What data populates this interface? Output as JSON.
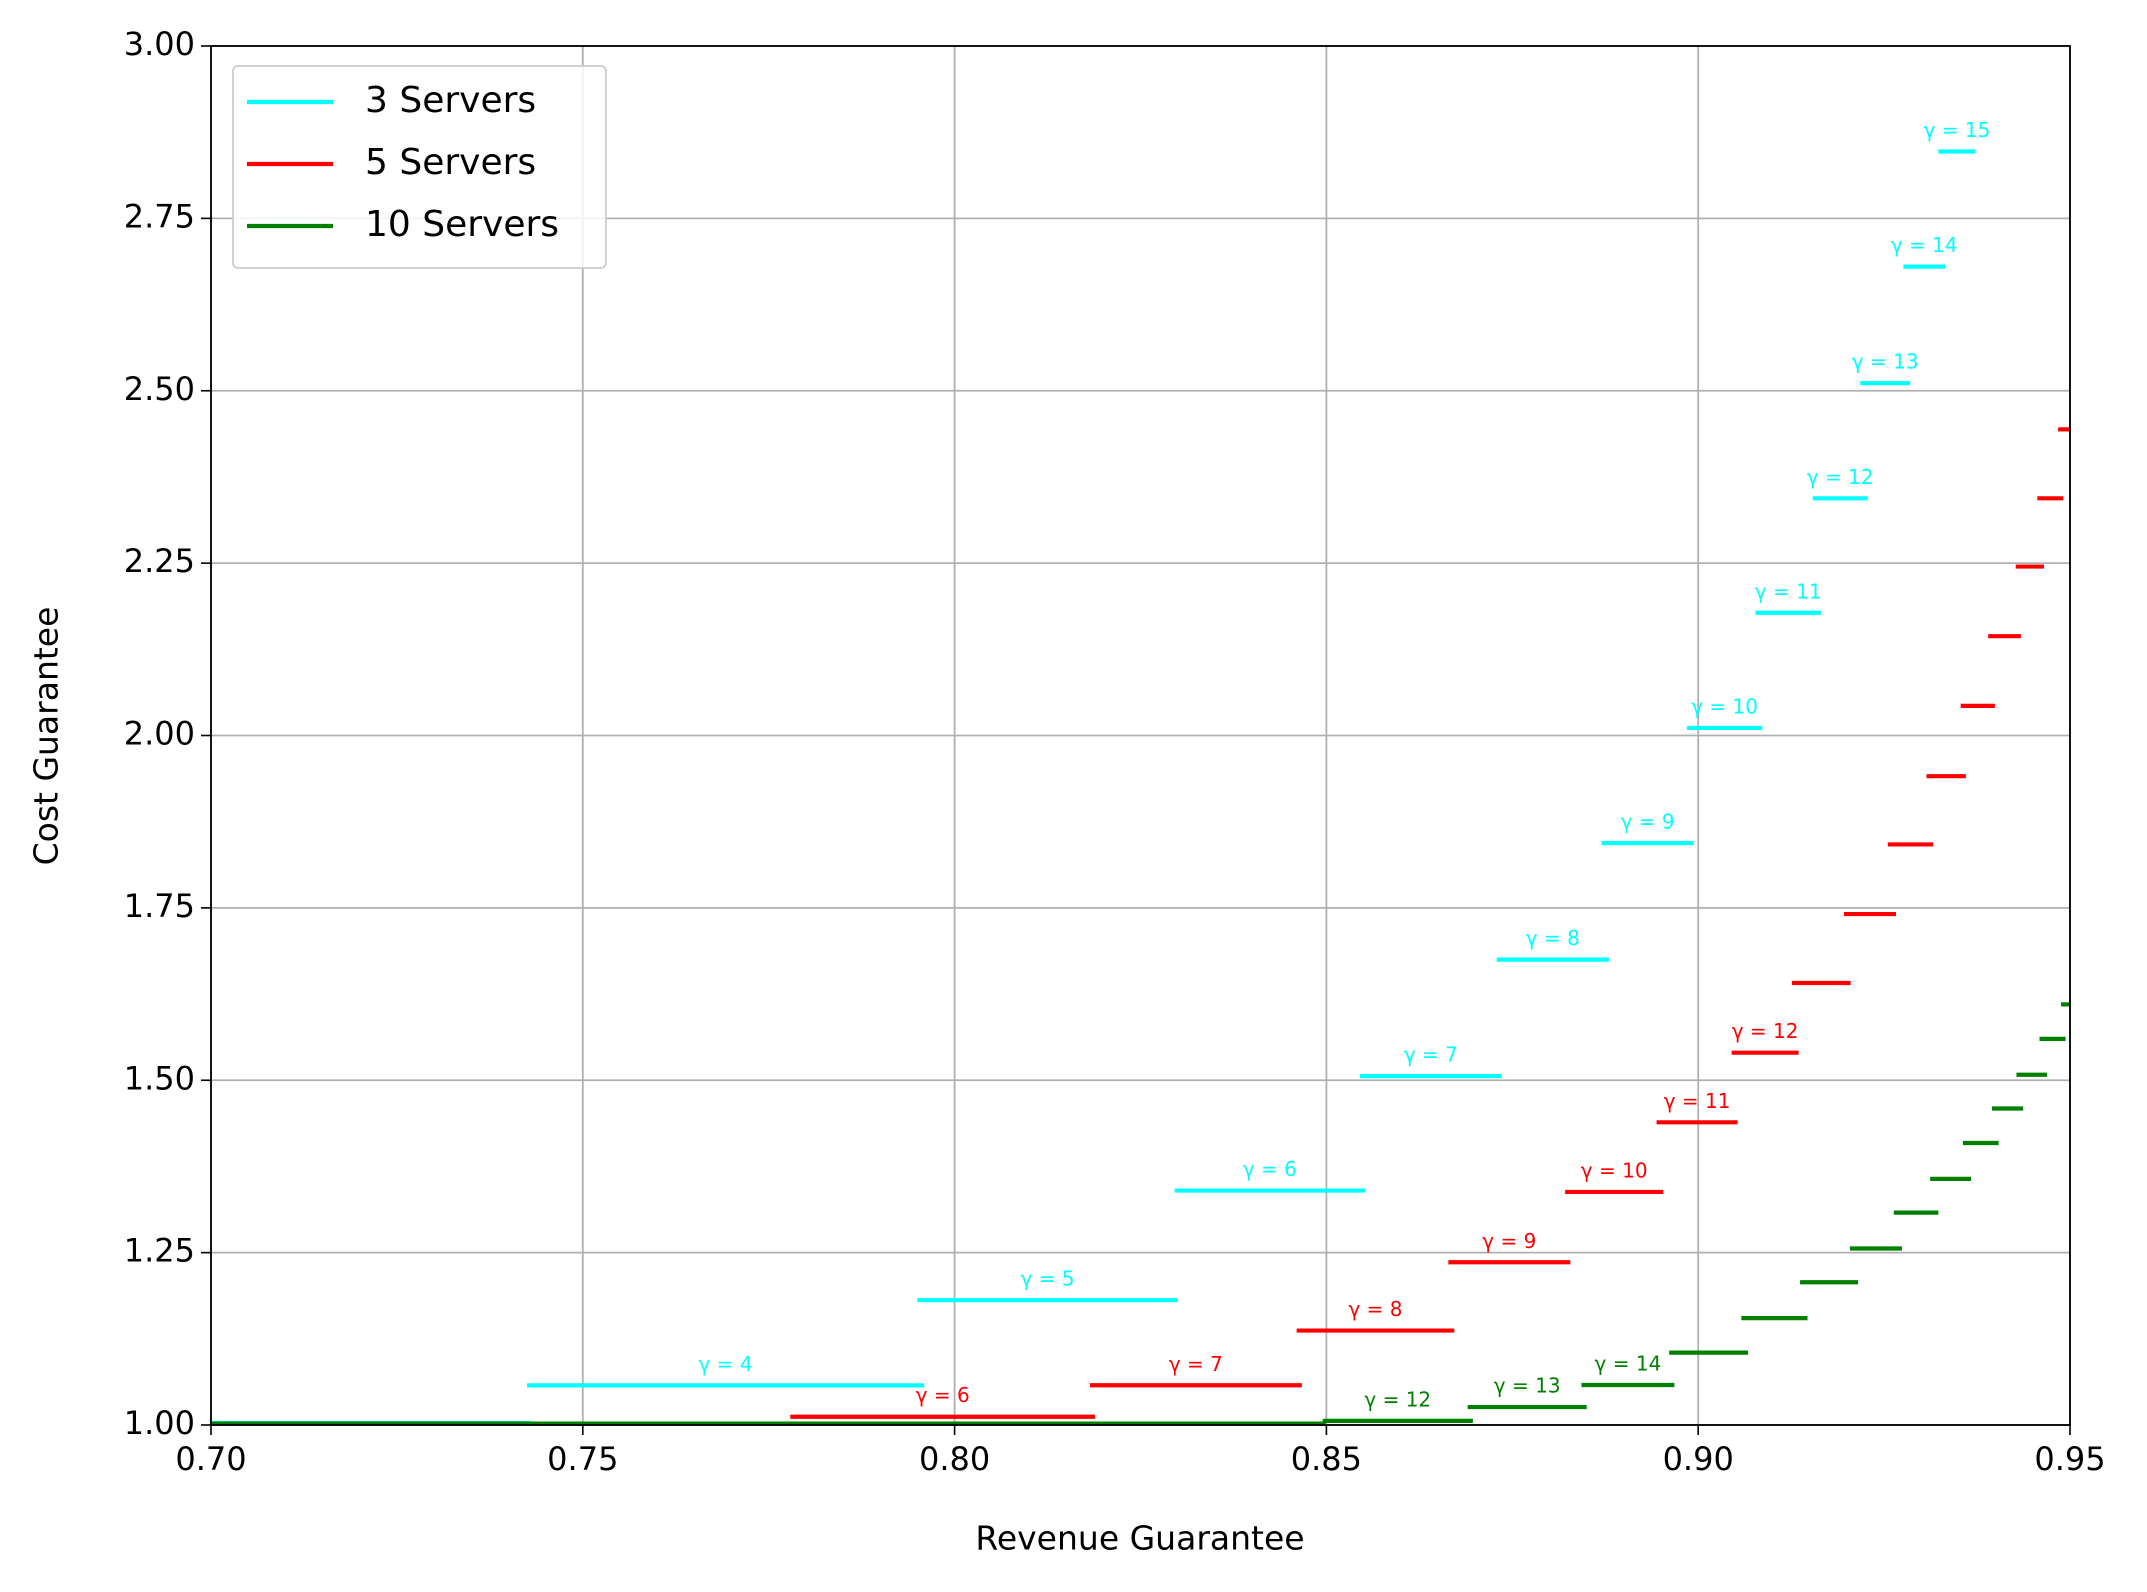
{
  "chart_data": {
    "type": "step-segments",
    "xlabel": "Revenue Guarantee",
    "ylabel": "Cost Guarantee",
    "xlim": [
      0.7,
      0.95
    ],
    "ylim": [
      1.0,
      3.0
    ],
    "xticks": [
      {
        "value": 0.7,
        "label": "0.70"
      },
      {
        "value": 0.75,
        "label": "0.75"
      },
      {
        "value": 0.8,
        "label": "0.80"
      },
      {
        "value": 0.85,
        "label": "0.85"
      },
      {
        "value": 0.9,
        "label": "0.90"
      },
      {
        "value": 0.95,
        "label": "0.95"
      }
    ],
    "yticks": [
      {
        "value": 1.0,
        "label": "1.00"
      },
      {
        "value": 1.25,
        "label": "1.25"
      },
      {
        "value": 1.5,
        "label": "1.50"
      },
      {
        "value": 1.75,
        "label": "1.75"
      },
      {
        "value": 2.0,
        "label": "2.00"
      },
      {
        "value": 2.25,
        "label": "2.25"
      },
      {
        "value": 2.5,
        "label": "2.50"
      },
      {
        "value": 2.75,
        "label": "2.75"
      },
      {
        "value": 3.0,
        "label": "3.00"
      }
    ],
    "grid": true,
    "legend": "upper left",
    "series": [
      {
        "name": "3 Servers",
        "color": "#00ffff",
        "x0": [
          0.7,
          0.7425,
          0.795,
          0.8296,
          0.8545,
          0.8729,
          0.887,
          0.8985,
          0.9077,
          0.9154,
          0.9218,
          0.9276,
          0.9323
        ],
        "x1": [
          0.743,
          0.7959,
          0.83,
          0.8552,
          0.8736,
          0.888,
          0.8994,
          0.9086,
          0.9165,
          0.9228,
          0.9285,
          0.9332,
          0.9373
        ],
        "values": [
          1.003,
          1.0575,
          1.181,
          1.34,
          1.506,
          1.675,
          1.844,
          2.011,
          2.178,
          2.344,
          2.511,
          2.68,
          2.847
        ],
        "labels": [
          null,
          "γ = 4",
          "γ = 5",
          "γ = 6",
          "γ = 7",
          "γ = 8",
          "γ = 9",
          "γ = 10",
          "γ = 11",
          "γ = 12",
          "γ = 13",
          "γ = 14",
          "γ = 15"
        ]
      },
      {
        "name": "5 Servers",
        "color": "#ff0000",
        "x0": [
          0.7779,
          0.8182,
          0.846,
          0.8664,
          0.8821,
          0.8944,
          0.9045,
          0.9126,
          0.9196,
          0.9255,
          0.9307,
          0.9353,
          0.939,
          0.9427,
          0.9456,
          0.9484
        ],
        "x1": [
          0.8189,
          0.8467,
          0.8672,
          0.8828,
          0.8953,
          0.9053,
          0.9135,
          0.9205,
          0.9266,
          0.9316,
          0.936,
          0.9399,
          0.9434,
          0.9465,
          0.9491,
          0.95
        ],
        "values": [
          1.012,
          1.0576,
          1.137,
          1.236,
          1.338,
          1.439,
          1.54,
          1.641,
          1.741,
          1.842,
          1.941,
          2.043,
          2.144,
          2.245,
          2.344,
          2.444
        ],
        "labels": [
          "γ = 6",
          "γ = 7",
          "γ = 8",
          "γ = 9",
          "γ = 10",
          "γ = 11",
          "γ = 12",
          null,
          null,
          null,
          null,
          null,
          null,
          null,
          null,
          null
        ]
      },
      {
        "name": "10 Servers",
        "color": "#008000",
        "x0": [
          0.7,
          0.8495,
          0.869,
          0.8843,
          0.8961,
          0.9058,
          0.9137,
          0.9204,
          0.9263,
          0.9312,
          0.9356,
          0.9395,
          0.9428,
          0.9459,
          0.9488
        ],
        "x1": [
          0.8499,
          0.8697,
          0.885,
          0.8968,
          0.9067,
          0.9147,
          0.9215,
          0.9274,
          0.9323,
          0.9367,
          0.9404,
          0.9437,
          0.9469,
          0.9494,
          0.95
        ],
        "values": [
          1.002,
          1.006,
          1.026,
          1.058,
          1.105,
          1.155,
          1.207,
          1.256,
          1.308,
          1.357,
          1.409,
          1.459,
          1.508,
          1.56,
          1.61
        ],
        "labels": [
          null,
          "γ = 12",
          "γ = 13",
          "γ = 14",
          null,
          null,
          null,
          null,
          null,
          null,
          null,
          null,
          null,
          null,
          null
        ]
      }
    ]
  }
}
